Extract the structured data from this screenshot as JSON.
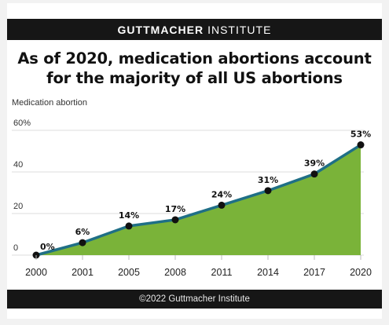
{
  "header": {
    "brand_bold": "GUTTMACHER",
    "brand_thin": "INSTITUTE"
  },
  "title_line1": "As of 2020, medication abortions account",
  "title_line2": "for the majority of all US abortions",
  "footer": "©2022 Guttmacher Institute",
  "colors": {
    "area": "#7ab339",
    "line": "#1f6f86",
    "point": "#111111",
    "grid": "#dcdcdc",
    "bar": "#161616"
  },
  "chart_data": {
    "type": "area",
    "title": "As of 2020, medication abortions account for the majority of all US abortions",
    "ylabel": "Medication abortion",
    "xlabel": "",
    "ylim": [
      0,
      60
    ],
    "yticks": [
      0,
      20,
      40,
      60
    ],
    "ytick_labels": [
      "0",
      "20",
      "40",
      "60%"
    ],
    "grid": true,
    "categories": [
      "2000",
      "2001",
      "2005",
      "2008",
      "2011",
      "2014",
      "2017",
      "2020"
    ],
    "series": [
      {
        "values": [
          0,
          6,
          14,
          17,
          24,
          31,
          39,
          53
        ],
        "labels": [
          "0%",
          "6%",
          "14%",
          "17%",
          "24%",
          "31%",
          "39%",
          "53%"
        ]
      }
    ]
  }
}
